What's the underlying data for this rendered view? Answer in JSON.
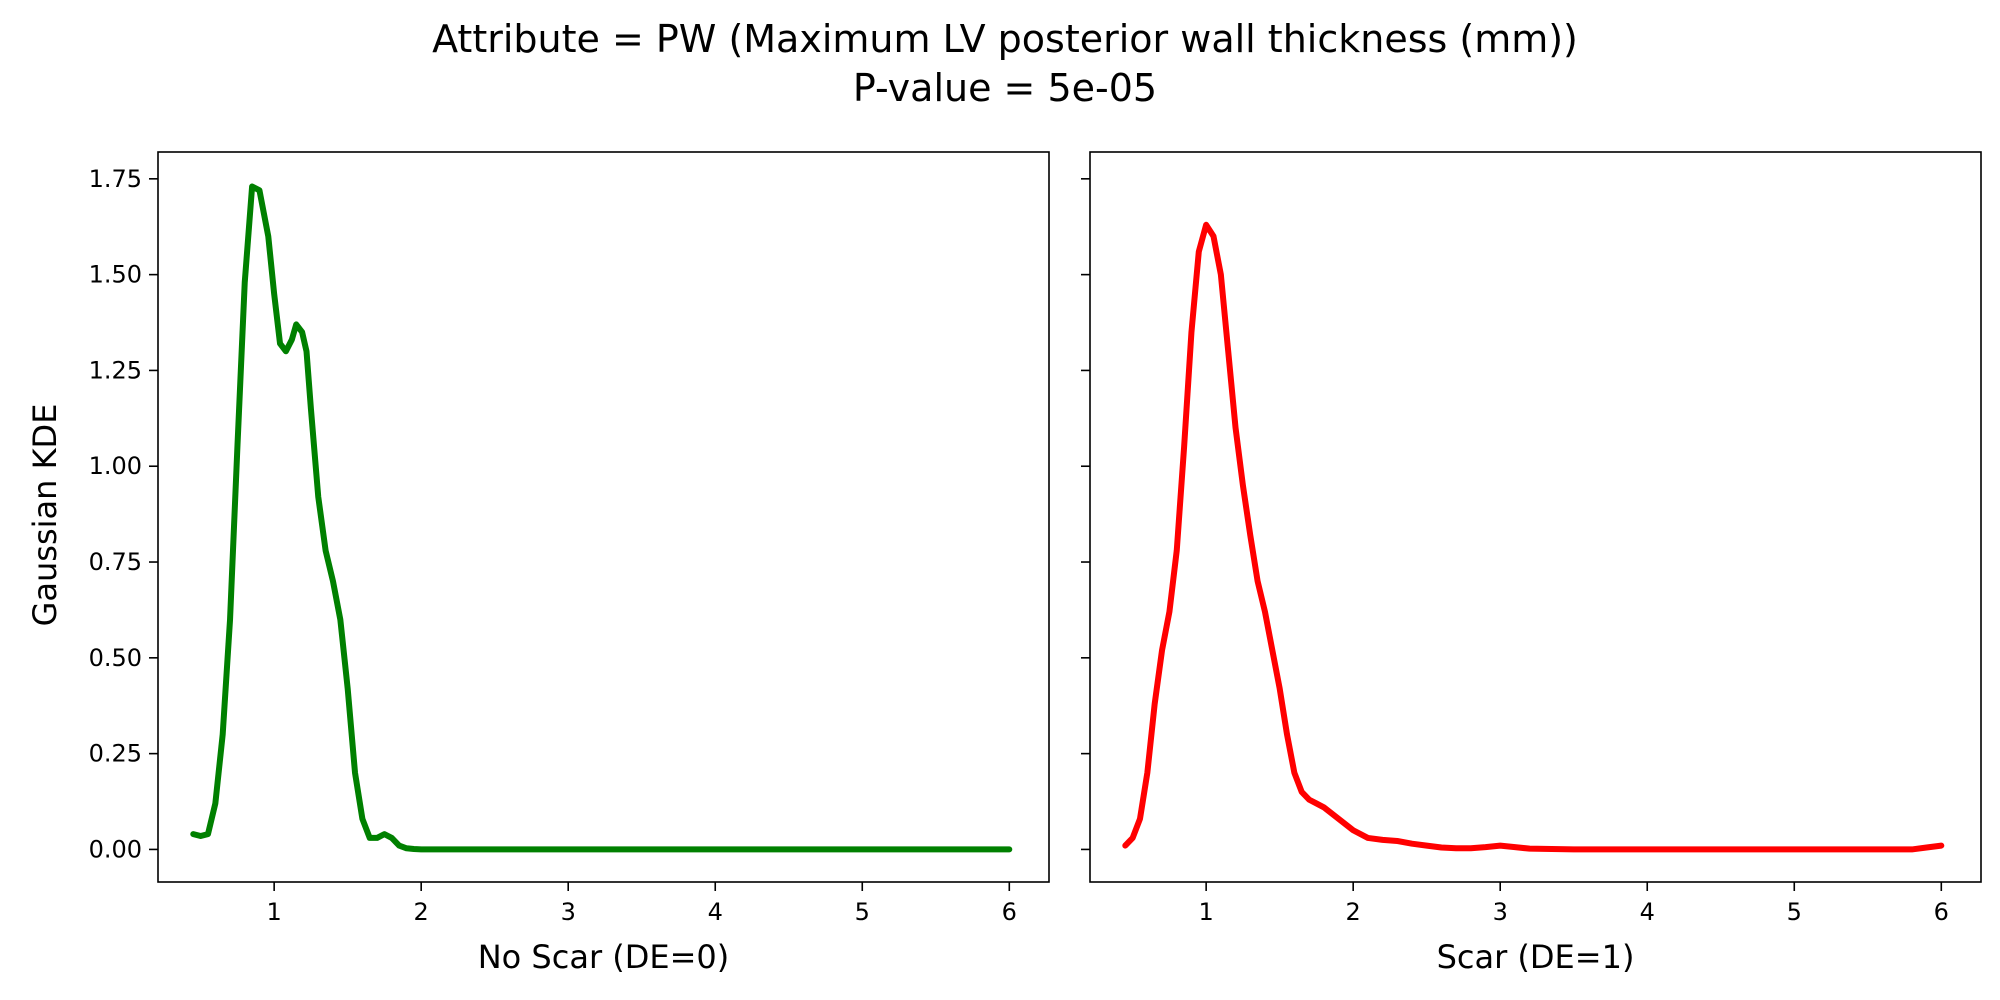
{
  "chart_data": {
    "type": "line",
    "title": "Attribute = PW (Maximum LV posterior wall thickness (mm))",
    "subtitle": "P-value = 5e-05",
    "ylabel": "Gaussian KDE",
    "sharey": true,
    "ylim": [
      -0.085,
      1.82
    ],
    "yticks": [
      0.0,
      0.25,
      0.5,
      0.75,
      1.0,
      1.25,
      1.5,
      1.75
    ],
    "ytick_labels": [
      "0.00",
      "0.25",
      "0.50",
      "0.75",
      "1.00",
      "1.25",
      "1.50",
      "1.75"
    ],
    "grid": false,
    "panels": [
      {
        "xlabel": "No Scar (DE=0)",
        "xlim": [
          0.21,
          6.27
        ],
        "xticks": [
          1,
          2,
          3,
          4,
          5,
          6
        ],
        "xtick_labels": [
          "1",
          "2",
          "3",
          "4",
          "5",
          "6"
        ],
        "series": [
          {
            "color": "#008000",
            "x": [
              0.45,
              0.5,
              0.55,
              0.6,
              0.65,
              0.7,
              0.75,
              0.8,
              0.85,
              0.9,
              0.93,
              0.96,
              1.0,
              1.04,
              1.08,
              1.12,
              1.15,
              1.19,
              1.22,
              1.25,
              1.3,
              1.35,
              1.4,
              1.45,
              1.5,
              1.55,
              1.6,
              1.65,
              1.7,
              1.75,
              1.8,
              1.85,
              1.9,
              1.95,
              2.0,
              2.5,
              3.0,
              3.5,
              4.0,
              4.5,
              5.0,
              5.5,
              6.0
            ],
            "y": [
              0.04,
              0.035,
              0.04,
              0.12,
              0.3,
              0.6,
              1.05,
              1.48,
              1.73,
              1.72,
              1.66,
              1.6,
              1.45,
              1.32,
              1.3,
              1.33,
              1.37,
              1.35,
              1.3,
              1.15,
              0.92,
              0.78,
              0.7,
              0.6,
              0.42,
              0.2,
              0.08,
              0.03,
              0.03,
              0.04,
              0.03,
              0.01,
              0.003,
              0.001,
              0.0,
              0.0,
              0.0,
              0.0,
              0.0,
              0.0,
              0.0,
              0.0,
              0.0
            ]
          }
        ]
      },
      {
        "xlabel": "Scar (DE=1)",
        "xlim": [
          0.21,
          6.27
        ],
        "xticks": [
          1,
          2,
          3,
          4,
          5,
          6
        ],
        "xtick_labels": [
          "1",
          "2",
          "3",
          "4",
          "5",
          "6"
        ],
        "series": [
          {
            "color": "#ff0000",
            "x": [
              0.45,
              0.5,
              0.55,
              0.6,
              0.65,
              0.7,
              0.75,
              0.8,
              0.85,
              0.9,
              0.95,
              1.0,
              1.05,
              1.1,
              1.15,
              1.2,
              1.25,
              1.3,
              1.35,
              1.4,
              1.45,
              1.5,
              1.55,
              1.6,
              1.65,
              1.7,
              1.75,
              1.8,
              1.9,
              2.0,
              2.1,
              2.2,
              2.3,
              2.4,
              2.5,
              2.6,
              2.7,
              2.8,
              2.9,
              3.0,
              3.1,
              3.2,
              3.5,
              4.0,
              4.5,
              5.0,
              5.5,
              5.8,
              5.9,
              6.0
            ],
            "y": [
              0.01,
              0.03,
              0.08,
              0.2,
              0.38,
              0.52,
              0.62,
              0.78,
              1.05,
              1.35,
              1.56,
              1.63,
              1.6,
              1.5,
              1.3,
              1.1,
              0.95,
              0.82,
              0.7,
              0.62,
              0.52,
              0.42,
              0.3,
              0.2,
              0.15,
              0.13,
              0.12,
              0.11,
              0.08,
              0.05,
              0.03,
              0.025,
              0.022,
              0.015,
              0.01,
              0.005,
              0.003,
              0.003,
              0.006,
              0.01,
              0.006,
              0.002,
              0.0,
              0.0,
              0.0,
              0.0,
              0.0,
              0.0,
              0.005,
              0.01
            ]
          }
        ]
      }
    ]
  }
}
